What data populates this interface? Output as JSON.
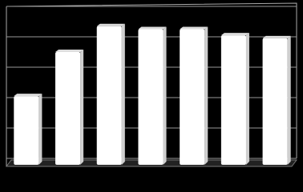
{
  "chart_data": {
    "type": "bar",
    "values": [
      2.05,
      3.5,
      4.35,
      4.25,
      4.25,
      4.05,
      3.95
    ],
    "color": "#ffffff",
    "ylim": [
      0,
      5
    ],
    "yticks": [
      0,
      1,
      2,
      3,
      4,
      5
    ],
    "grid": true
  }
}
